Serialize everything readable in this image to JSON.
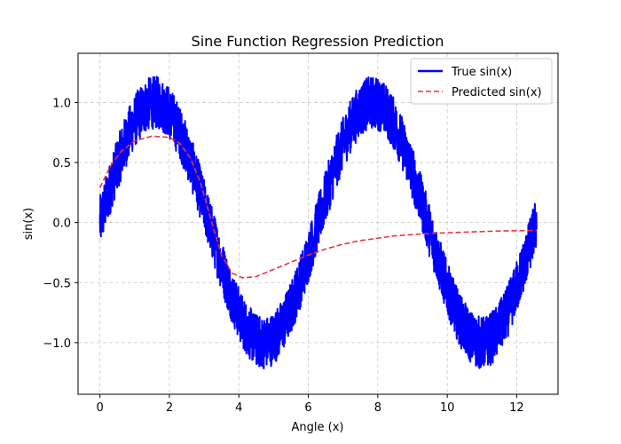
{
  "chart_data": {
    "type": "line",
    "title": "Sine Function Regression Prediction",
    "xlabel": "Angle (x)",
    "ylabel": "sin(x)",
    "xlim": [
      -0.63,
      13.19
    ],
    "ylim": [
      -1.43,
      1.41
    ],
    "xticks": [
      0,
      2,
      4,
      6,
      8,
      10,
      12
    ],
    "yticks": [
      -1.0,
      -0.5,
      0.0,
      0.5,
      1.0
    ],
    "xtick_labels": [
      "0",
      "2",
      "4",
      "6",
      "8",
      "10",
      "12"
    ],
    "ytick_labels": [
      "−1.0",
      "−0.5",
      "0.0",
      "0.5",
      "1.0"
    ],
    "grid": true,
    "legend_position": "top-right",
    "series": [
      {
        "name": "True sin(x)",
        "color": "#0000ff",
        "style": "solid",
        "kind": "noisy-sine",
        "x_range": [
          0,
          12.57
        ],
        "noise_amplitude": 0.22,
        "sample_x": [
          0,
          1.57,
          3.14,
          4.71,
          6.28,
          7.85,
          9.42,
          10.99,
          12.57
        ],
        "sample_y": [
          0,
          1,
          0,
          -1,
          0,
          1,
          0,
          -1,
          0
        ]
      },
      {
        "name": "Predicted sin(x)",
        "color": "#ee3333",
        "style": "dashed",
        "x": [
          0,
          0.3,
          0.6,
          1.0,
          1.5,
          2.0,
          2.3,
          2.6,
          2.9,
          3.2,
          3.5,
          3.8,
          4.1,
          4.5,
          5.0,
          5.5,
          6.0,
          6.5,
          7.0,
          7.5,
          8.0,
          8.5,
          9.0,
          9.5,
          10.0,
          10.5,
          11.0,
          11.5,
          12.0,
          12.57
        ],
        "y": [
          0.29,
          0.47,
          0.59,
          0.68,
          0.72,
          0.71,
          0.66,
          0.54,
          0.33,
          0.02,
          -0.27,
          -0.42,
          -0.46,
          -0.45,
          -0.39,
          -0.33,
          -0.27,
          -0.22,
          -0.18,
          -0.15,
          -0.13,
          -0.11,
          -0.1,
          -0.09,
          -0.085,
          -0.08,
          -0.075,
          -0.07,
          -0.068,
          -0.065
        ]
      }
    ]
  }
}
